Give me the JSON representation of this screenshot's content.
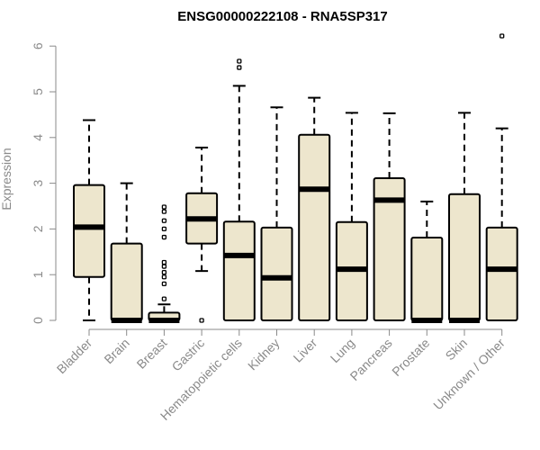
{
  "chart_data": {
    "type": "boxplot",
    "title": "ENSG00000222108 - RNA5SP317",
    "xlabel": "",
    "ylabel": "Expression",
    "ylim": [
      0,
      6
    ],
    "yticks": [
      "0",
      "1",
      "2",
      "3",
      "4",
      "5",
      "6"
    ],
    "categories": [
      "Bladder",
      "Brain",
      "Breast",
      "Gastric",
      "Hematopoietic cells",
      "Kidney",
      "Liver",
      "Lung",
      "Pancreas",
      "Prostate",
      "Skin",
      "Unknown / Other"
    ],
    "boxes": [
      {
        "label": "Bladder",
        "whisker_low": 0.0,
        "q1": 0.95,
        "median": 2.04,
        "q3": 2.96,
        "whisker_high": 4.38,
        "outliers": []
      },
      {
        "label": "Brain",
        "whisker_low": 0.0,
        "q1": 0.0,
        "median": 0.0,
        "q3": 1.68,
        "whisker_high": 3.0,
        "outliers": []
      },
      {
        "label": "Breast",
        "whisker_low": 0.0,
        "q1": 0.0,
        "median": 0.0,
        "q3": 0.17,
        "whisker_high": 0.35,
        "outliers": [
          0.47,
          0.8,
          0.95,
          1.05,
          1.18,
          1.27,
          1.82,
          2.0,
          2.18,
          2.38,
          2.48
        ]
      },
      {
        "label": "Gastric",
        "whisker_low": 1.08,
        "q1": 1.68,
        "median": 2.22,
        "q3": 2.78,
        "whisker_high": 3.78,
        "outliers": [
          0.0
        ]
      },
      {
        "label": "Hematopoietic cells",
        "whisker_low": 0.0,
        "q1": 0.0,
        "median": 1.42,
        "q3": 2.16,
        "whisker_high": 5.13,
        "outliers": [
          5.53,
          5.67
        ]
      },
      {
        "label": "Kidney",
        "whisker_low": 0.0,
        "q1": 0.0,
        "median": 0.93,
        "q3": 2.03,
        "whisker_high": 4.66,
        "outliers": []
      },
      {
        "label": "Liver",
        "whisker_low": 0.0,
        "q1": 0.0,
        "median": 2.87,
        "q3": 4.06,
        "whisker_high": 4.87,
        "outliers": []
      },
      {
        "label": "Lung",
        "whisker_low": 0.0,
        "q1": 0.0,
        "median": 1.12,
        "q3": 2.15,
        "whisker_high": 4.54,
        "outliers": []
      },
      {
        "label": "Pancreas",
        "whisker_low": 0.0,
        "q1": 0.0,
        "median": 2.63,
        "q3": 3.11,
        "whisker_high": 4.53,
        "outliers": []
      },
      {
        "label": "Prostate",
        "whisker_low": 0.0,
        "q1": 0.0,
        "median": 0.0,
        "q3": 1.81,
        "whisker_high": 2.6,
        "outliers": []
      },
      {
        "label": "Skin",
        "whisker_low": 0.0,
        "q1": 0.0,
        "median": 0.0,
        "q3": 2.76,
        "whisker_high": 4.54,
        "outliers": []
      },
      {
        "label": "Unknown / Other",
        "whisker_low": 0.0,
        "q1": 0.0,
        "median": 1.12,
        "q3": 2.03,
        "whisker_high": 4.2,
        "outliers": [
          6.22
        ]
      }
    ],
    "colors": {
      "box_fill": "#ede6cd",
      "box_stroke": "#000000",
      "median": "#000000",
      "whisker": "#000000",
      "axis": "#8a8a8a",
      "text_muted": "#8a8a8a",
      "title": "#000000"
    }
  }
}
